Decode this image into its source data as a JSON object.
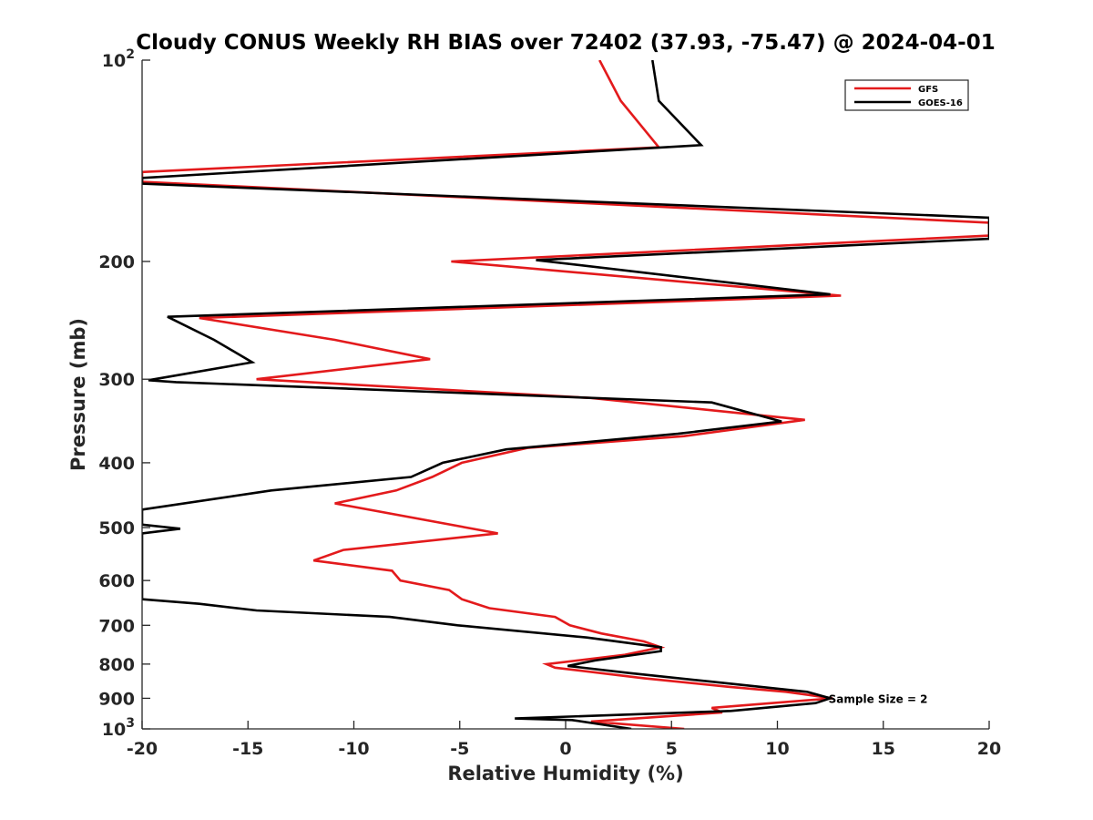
{
  "chart_data": {
    "type": "line",
    "title": "Cloudy CONUS Weekly RH BIAS over 72402 (37.93, -75.47) @ 2024-04-01",
    "xlabel": "Relative Humidity (%)",
    "ylabel": "Pressure (mb)",
    "xlim": [
      -20,
      20
    ],
    "ylim": [
      100,
      1000
    ],
    "y_scale": "log",
    "y_reversed": true,
    "x_ticks": [
      -20,
      -15,
      -10,
      -5,
      0,
      5,
      10,
      15,
      20
    ],
    "x_tick_labels": [
      "-20",
      "-15",
      "-10",
      "-5",
      "0",
      "5",
      "10",
      "15",
      "20"
    ],
    "y_ticks": [
      100,
      200,
      300,
      400,
      500,
      600,
      700,
      800,
      900,
      1000
    ],
    "y_tick_labels": [
      {
        "base": "10",
        "exp": "2"
      },
      {
        "base": "200"
      },
      {
        "base": "300"
      },
      {
        "base": "400"
      },
      {
        "base": "500"
      },
      {
        "base": "600"
      },
      {
        "base": "700"
      },
      {
        "base": "800"
      },
      {
        "base": "900"
      },
      {
        "base": "10",
        "exp": "3"
      }
    ],
    "grid": false,
    "legend_position": "top-right",
    "annotation": "Sample Size = 2",
    "annotation_at": [
      12.5,
      900
    ],
    "series": [
      {
        "name": "GFS",
        "color": "#e31a1c",
        "points": [
          [
            1.6,
            100
          ],
          [
            2.6,
            115
          ],
          [
            4.4,
            135
          ],
          [
            -20,
            147
          ],
          [
            -20,
            152
          ],
          [
            20,
            175
          ],
          [
            20,
            183
          ],
          [
            -5.4,
            200
          ],
          [
            13,
            225
          ],
          [
            -17.3,
            243
          ],
          [
            -10.9,
            262
          ],
          [
            -6.4,
            280
          ],
          [
            -14.6,
            300
          ],
          [
            1.2,
            320
          ],
          [
            11.3,
            345
          ],
          [
            5.6,
            365
          ],
          [
            -1.8,
            380
          ],
          [
            -4.9,
            400
          ],
          [
            -6.3,
            420
          ],
          [
            -8,
            440
          ],
          [
            -10.9,
            460
          ],
          [
            -3.2,
            510
          ],
          [
            -10.5,
            540
          ],
          [
            -11.9,
            560
          ],
          [
            -8.2,
            580
          ],
          [
            -7.8,
            600
          ],
          [
            -5.5,
            620
          ],
          [
            -4.9,
            640
          ],
          [
            -3.6,
            660
          ],
          [
            -0.5,
            680
          ],
          [
            0.2,
            700
          ],
          [
            1.7,
            720
          ],
          [
            3.7,
            740
          ],
          [
            4.5,
            755
          ],
          [
            2.8,
            775
          ],
          [
            -0.9,
            800
          ],
          [
            -0.5,
            810
          ],
          [
            3.7,
            840
          ],
          [
            7.7,
            865
          ],
          [
            10.4,
            880
          ],
          [
            12.6,
            900
          ],
          [
            6.9,
            930
          ],
          [
            7.4,
            945
          ],
          [
            1.2,
            975
          ],
          [
            5.6,
            1000
          ]
        ]
      },
      {
        "name": "GOES-16",
        "color": "#000000",
        "points": [
          [
            4.1,
            100
          ],
          [
            4.4,
            115
          ],
          [
            6.4,
            134
          ],
          [
            -20,
            150
          ],
          [
            -20,
            153
          ],
          [
            20,
            172
          ],
          [
            20,
            185
          ],
          [
            -1.4,
            199
          ],
          [
            12.5,
            224
          ],
          [
            -18.8,
            242
          ],
          [
            -16.6,
            262
          ],
          [
            -14.8,
            283
          ],
          [
            -19.7,
            301
          ],
          [
            -18.4,
            303
          ],
          [
            6.9,
            325
          ],
          [
            10.2,
            347
          ],
          [
            5.3,
            362
          ],
          [
            -2.8,
            382
          ],
          [
            -5.8,
            400
          ],
          [
            -7.3,
            420
          ],
          [
            -13.9,
            440
          ],
          [
            -20,
            470
          ],
          [
            -20,
            495
          ],
          [
            -18.2,
            502
          ],
          [
            -20,
            510
          ],
          [
            -20,
            640
          ],
          [
            -17.3,
            650
          ],
          [
            -14.6,
            665
          ],
          [
            -8.3,
            680
          ],
          [
            -5.1,
            700
          ],
          [
            1,
            730
          ],
          [
            4.5,
            755
          ],
          [
            4.5,
            765
          ],
          [
            1.4,
            790
          ],
          [
            0.1,
            805
          ],
          [
            3,
            825
          ],
          [
            6.9,
            850
          ],
          [
            11.4,
            880
          ],
          [
            12.5,
            900
          ],
          [
            11.8,
            915
          ],
          [
            7.8,
            940
          ],
          [
            -2.4,
            965
          ],
          [
            0.3,
            970
          ],
          [
            3.1,
            1000
          ]
        ]
      }
    ]
  }
}
